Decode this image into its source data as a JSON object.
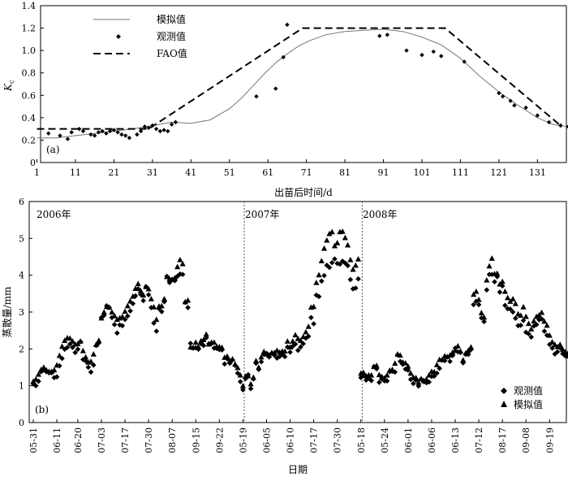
{
  "chart_data": [
    {
      "type": "line",
      "panel_label": "(a)",
      "xlabel": "出苗后时间/d",
      "ylabel": "K",
      "ylabel_sub": "c",
      "xlim": [
        1,
        140
      ],
      "ylim": [
        0,
        1.4
      ],
      "xticks": [
        1,
        11,
        21,
        31,
        41,
        51,
        61,
        71,
        81,
        91,
        101,
        111,
        121,
        131
      ],
      "yticks": [
        "0",
        "0.2",
        "0.4",
        "0.6",
        "0.8",
        "1.0",
        "1.2",
        "1.4"
      ],
      "yticks_values": [
        0,
        0.2,
        0.4,
        0.6,
        0.8,
        1.0,
        1.2,
        1.4
      ],
      "legend": [
        "模拟值",
        "观测值",
        "FAO值"
      ],
      "series": [
        {
          "name": "模拟值",
          "style": "solid-thin",
          "x": [
            1,
            6,
            11,
            16,
            21,
            26,
            31,
            36,
            41,
            46,
            51,
            54,
            57,
            60,
            63,
            66,
            69,
            72,
            76,
            81,
            86,
            91,
            96,
            101,
            106,
            111,
            116,
            121,
            126,
            131,
            135,
            139
          ],
          "y": [
            0.22,
            0.22,
            0.24,
            0.26,
            0.28,
            0.3,
            0.33,
            0.36,
            0.35,
            0.38,
            0.48,
            0.57,
            0.68,
            0.79,
            0.89,
            0.97,
            1.04,
            1.09,
            1.14,
            1.17,
            1.18,
            1.19,
            1.17,
            1.12,
            1.05,
            0.93,
            0.77,
            0.63,
            0.51,
            0.4,
            0.34,
            0.32
          ]
        },
        {
          "name": "观测值",
          "style": "diamond",
          "x": [
            4,
            7,
            9,
            10,
            12,
            13,
            15,
            16,
            17,
            18,
            19,
            20,
            21,
            22,
            23,
            24,
            25,
            27,
            28,
            29,
            30,
            31,
            32,
            33,
            34,
            35,
            36,
            37,
            58,
            63,
            65,
            66,
            90,
            92,
            97,
            101,
            104,
            106,
            112,
            121,
            122,
            124,
            125,
            128,
            131,
            134,
            137,
            139
          ],
          "y": [
            0.26,
            0.24,
            0.21,
            0.27,
            0.3,
            0.28,
            0.25,
            0.24,
            0.27,
            0.28,
            0.26,
            0.28,
            0.29,
            0.27,
            0.25,
            0.24,
            0.22,
            0.25,
            0.28,
            0.32,
            0.31,
            0.33,
            0.3,
            0.28,
            0.29,
            0.28,
            0.34,
            0.36,
            0.59,
            0.66,
            0.94,
            1.23,
            1.13,
            1.14,
            1.0,
            0.96,
            0.99,
            0.95,
            0.9,
            0.62,
            0.59,
            0.55,
            0.51,
            0.49,
            0.42,
            0.36,
            0.33,
            0.32
          ]
        },
        {
          "name": "FAO值",
          "style": "dashed",
          "x": [
            1,
            30,
            70,
            107,
            137
          ],
          "y": [
            0.3,
            0.3,
            1.2,
            1.2,
            0.33
          ]
        }
      ]
    },
    {
      "type": "scatter",
      "panel_label": "(b)",
      "xlabel": "日期",
      "ylabel": "蒸散量/mm",
      "ylim": [
        0,
        6
      ],
      "yticks": [
        "0",
        "1",
        "2",
        "3",
        "4",
        "5",
        "6"
      ],
      "yticks_values": [
        0,
        1,
        2,
        3,
        4,
        5,
        6
      ],
      "xticks": [
        "05-31",
        "06-11",
        "06-20",
        "07-03",
        "07-17",
        "07-30",
        "08-07",
        "09-15",
        "09-22",
        "05-19",
        "06-05",
        "06-10",
        "07-17",
        "07-30",
        "05-18",
        "05-24",
        "06-01",
        "06-06",
        "06-13",
        "07-12",
        "08-17",
        "09-08",
        "09-19"
      ],
      "xticks_index": [
        0,
        9,
        17,
        26,
        35,
        44,
        53,
        62,
        71,
        80,
        89,
        98,
        107,
        116,
        125,
        134,
        143,
        152,
        161,
        170,
        179,
        188,
        197
      ],
      "n_points": 204,
      "year_labels": [
        "2006年",
        "2007年",
        "2008年"
      ],
      "year_dividers_index": [
        80.5,
        125.5
      ],
      "legend": [
        "观测值",
        "模拟值"
      ],
      "series": [
        {
          "name": "观测值",
          "marker": "diamond",
          "values": [
            1.05,
            1.0,
            1.12,
            1.38,
            1.45,
            1.38,
            1.35,
            1.35,
            1.22,
            1.24,
            1.54,
            1.74,
            1.99,
            2.04,
            2.13,
            2.04,
            1.9,
            1.99,
            2.2,
            1.71,
            1.67,
            1.5,
            1.37,
            1.56,
            2.09,
            2.16,
            2.85,
            2.91,
            3.17,
            3.12,
            2.85,
            2.66,
            2.43,
            2.65,
            2.63,
            2.8,
            2.89,
            3.03,
            3.23,
            3.44,
            3.63,
            3.48,
            3.31,
            3.69,
            3.47,
            3.12,
            2.7,
            2.48,
            3.09,
            3.01,
            3.28,
            3.97,
            3.8,
            3.89,
            3.85,
            3.97,
            4.03,
            4.02,
            3.26,
            3.12,
            2.15,
            2.02,
            2.03,
            1.99,
            2.14,
            2.09,
            2.3,
            2.14,
            2.15,
            2.02,
            2.01,
            1.98,
            1.97,
            1.59,
            1.73,
            1.61,
            1.7,
            1.55,
            1.34,
            1.11,
            0.89,
            1.19,
            1.3,
            0.92,
            1.18,
            1.61,
            1.44,
            1.65,
            1.85,
            1.88,
            1.78,
            1.88,
            1.83,
            1.75,
            1.79,
            1.86,
            1.79,
            2.05,
            1.91,
            2.07,
            2.13,
            1.96,
            2.05,
            2.14,
            2.29,
            2.34,
            2.85,
            2.68,
            3.46,
            3.42,
            3.84,
            3.99,
            4.27,
            4.21,
            4.34,
            4.44,
            4.32,
            4.3,
            4.38,
            4.33,
            4.26,
            3.88,
            3.63,
            3.65,
            3.9,
            1.22,
            1.29,
            1.15,
            1.2,
            1.14,
            1.52,
            1.46,
            1.09,
            1.18,
            1.13,
            1.13,
            1.38,
            1.39,
            1.37,
            1.84,
            1.66,
            1.58,
            1.45,
            1.42,
            1.17,
            1.06,
            1.15,
            0.99,
            1.18,
            1.11,
            1.08,
            1.1,
            1.25,
            1.26,
            1.34,
            1.47,
            1.69,
            1.68,
            1.78,
            1.66,
            1.82,
            2.02,
            1.92,
            1.9,
            1.62,
            1.85,
            1.85,
            1.98,
            3.2,
            3.29,
            3.2,
            2.84,
            2.74,
            3.6,
            4.02,
            4.02,
            3.82,
            3.96,
            3.54,
            3.71,
            3.18,
            3.09,
            3.08,
            3.0,
            2.83,
            2.63,
            2.64,
            2.77,
            2.45,
            2.41,
            2.32,
            2.62,
            2.66,
            2.79,
            2.81,
            2.48,
            2.37,
            2.12,
            2.02,
            1.86,
            1.92,
            2.03,
            1.87,
            1.81,
            1.8
          ]
        },
        {
          "name": "模拟值",
          "marker": "triangle",
          "values": [
            1.12,
            1.18,
            1.31,
            1.44,
            1.5,
            1.43,
            1.39,
            1.39,
            1.43,
            1.56,
            1.82,
            2.07,
            2.23,
            2.3,
            2.29,
            2.21,
            2.13,
            2.14,
            2.21,
            1.95,
            1.78,
            1.64,
            1.66,
            1.86,
            2.12,
            2.23,
            2.84,
            3.0,
            3.15,
            3.13,
            3.0,
            2.9,
            2.8,
            2.84,
            2.88,
            3.02,
            3.17,
            3.3,
            3.43,
            3.64,
            3.77,
            3.58,
            3.46,
            3.69,
            3.63,
            3.36,
            3.14,
            2.8,
            3.16,
            3.17,
            3.36,
            3.96,
            3.9,
            3.88,
            3.93,
            4.23,
            4.42,
            4.31,
            3.28,
            3.32,
            2.05,
            2.04,
            2.18,
            2.06,
            2.22,
            2.25,
            2.4,
            2.13,
            2.18,
            2.18,
            2.07,
            2.06,
            2.04,
            1.77,
            1.8,
            1.68,
            1.73,
            1.59,
            1.49,
            1.29,
            1.0,
            1.26,
            1.27,
            1.05,
            1.23,
            1.68,
            1.5,
            1.78,
            1.93,
            1.86,
            1.83,
            1.9,
            1.9,
            1.96,
            1.91,
            1.94,
            1.94,
            2.21,
            2.05,
            2.21,
            2.38,
            2.28,
            2.23,
            2.33,
            2.46,
            2.61,
            3.13,
            3.15,
            3.8,
            4.01,
            4.39,
            4.73,
            4.95,
            5.13,
            5.18,
            4.8,
            4.88,
            5.18,
            5.19,
            5.02,
            4.82,
            4.42,
            4.16,
            4.27,
            4.44,
            1.34,
            1.36,
            1.27,
            1.29,
            1.29,
            1.52,
            1.55,
            1.3,
            1.25,
            1.21,
            1.29,
            1.42,
            1.44,
            1.61,
            1.86,
            1.83,
            1.64,
            1.62,
            1.53,
            1.34,
            1.23,
            1.22,
            1.09,
            1.19,
            1.14,
            1.18,
            1.29,
            1.39,
            1.38,
            1.57,
            1.71,
            1.71,
            1.81,
            1.79,
            1.83,
            1.91,
            1.96,
            2.08,
            1.94,
            1.7,
            1.89,
            1.96,
            2.05,
            3.48,
            3.56,
            3.34,
            2.98,
            2.86,
            3.87,
            4.25,
            4.46,
            4.04,
            4.05,
            3.76,
            3.83,
            3.56,
            3.39,
            3.29,
            3.36,
            3.23,
            2.95,
            2.91,
            3.14,
            2.88,
            2.69,
            2.54,
            2.76,
            2.88,
            2.92,
            2.99,
            2.75,
            2.64,
            2.37,
            2.19,
            2.12,
            2.06,
            2.12,
            1.99,
            1.92,
            1.88
          ]
        }
      ]
    }
  ]
}
